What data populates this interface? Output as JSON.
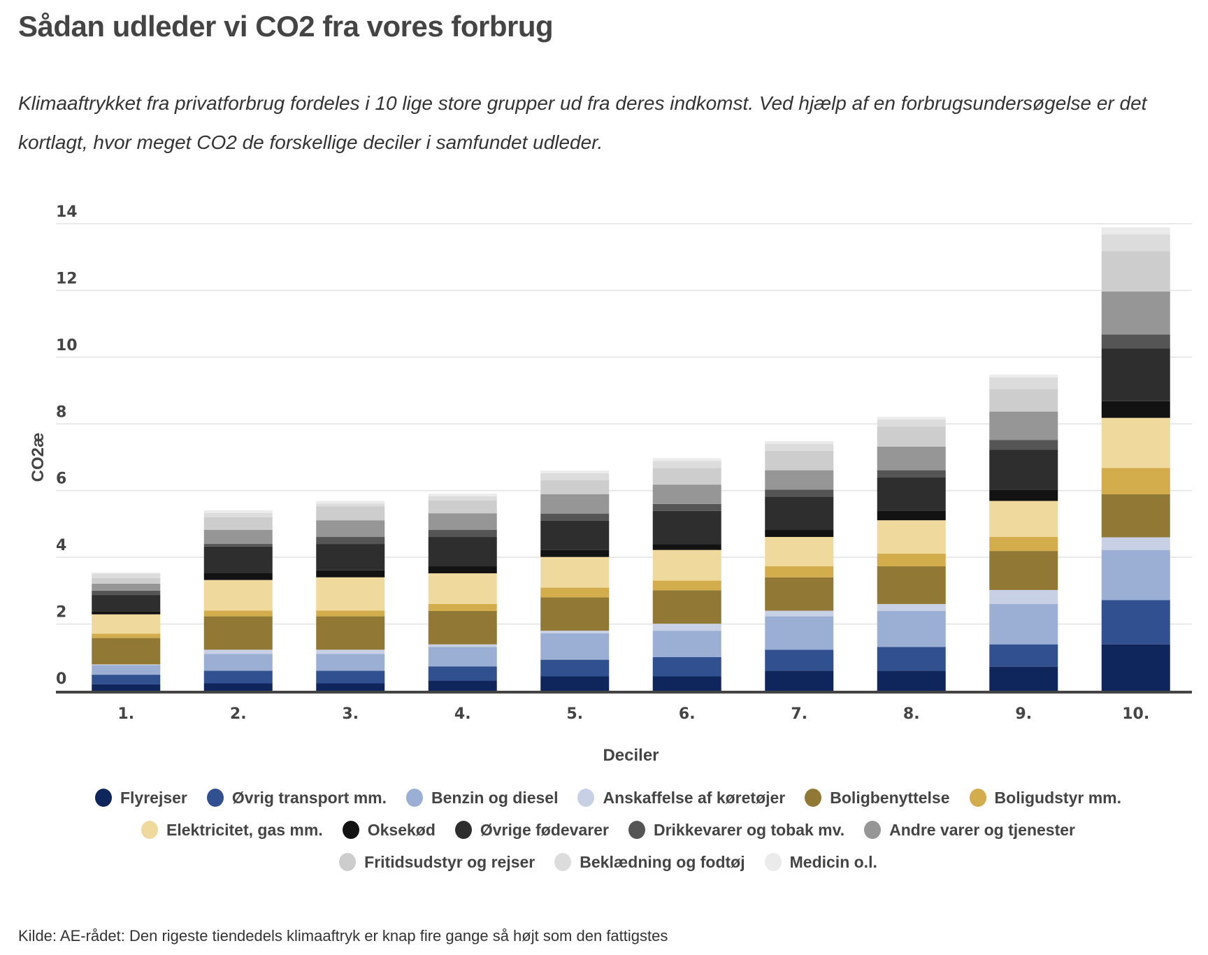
{
  "header": {
    "title": "Sådan udleder vi CO2 fra vores forbrug",
    "subtitle": "Klimaaftrykket fra privatforbrug fordeles i 10 lige store grupper ud fra deres indkomst. Ved hjælp af en forbrugsundersøgelse er det kortlagt, hvor meget CO2 de forskellige deciler i samfundet udleder."
  },
  "source": "Kilde: AE-rådet: Den rigeste tiendedels klimaaftryk er knap fire gange så højt som den fattigstes",
  "chart_data": {
    "type": "bar",
    "stacked": true,
    "title": "Sådan udleder vi CO2 fra vores forbrug",
    "xlabel": "Deciler",
    "ylabel": "CO2æ",
    "ylim": [
      0,
      14
    ],
    "yticks": [
      0,
      2,
      4,
      6,
      8,
      10,
      12,
      14
    ],
    "grid": true,
    "legend_position": "bottom",
    "categories": [
      "1.",
      "2.",
      "3.",
      "4.",
      "5.",
      "6.",
      "7.",
      "8.",
      "9.",
      "10."
    ],
    "series": [
      {
        "name": "Flyrejser",
        "color": "#0f265c",
        "values": [
          0.19,
          0.22,
          0.22,
          0.31,
          0.43,
          0.43,
          0.6,
          0.6,
          0.72,
          1.39
        ]
      },
      {
        "name": "Øvrig transport mm.",
        "color": "#30508f",
        "values": [
          0.29,
          0.38,
          0.38,
          0.42,
          0.5,
          0.58,
          0.63,
          0.71,
          0.67,
          1.33
        ]
      },
      {
        "name": "Benzin og diesel",
        "color": "#9aafd3",
        "values": [
          0.29,
          0.5,
          0.5,
          0.58,
          0.79,
          0.79,
          1.0,
          1.08,
          1.21,
          1.5
        ]
      },
      {
        "name": "Anskaffelse af køretøjer",
        "color": "#c7d0e4",
        "values": [
          0.02,
          0.13,
          0.13,
          0.08,
          0.08,
          0.21,
          0.17,
          0.21,
          0.42,
          0.38
        ]
      },
      {
        "name": "Boligbenyttelse",
        "color": "#917834",
        "values": [
          0.79,
          1.0,
          1.0,
          1.0,
          1.0,
          1.0,
          1.0,
          1.13,
          1.17,
          1.29
        ]
      },
      {
        "name": "Boligudstyr mm.",
        "color": "#d3ac4c",
        "values": [
          0.13,
          0.17,
          0.17,
          0.21,
          0.29,
          0.29,
          0.33,
          0.38,
          0.42,
          0.79
        ]
      },
      {
        "name": "Elektricitet, gas mm.",
        "color": "#f0d99d",
        "values": [
          0.58,
          0.92,
          1.0,
          0.92,
          0.92,
          0.92,
          0.88,
          1.0,
          1.08,
          1.5
        ]
      },
      {
        "name": "Oksekød",
        "color": "#121212",
        "values": [
          0.08,
          0.21,
          0.21,
          0.21,
          0.21,
          0.17,
          0.21,
          0.29,
          0.34,
          0.5
        ]
      },
      {
        "name": "Øvrige fødevarer",
        "color": "#2e2e2e",
        "values": [
          0.5,
          0.79,
          0.79,
          0.88,
          0.88,
          1.0,
          1.0,
          1.0,
          1.19,
          1.58
        ]
      },
      {
        "name": "Drikkevarer og tobak mv.",
        "color": "#555555",
        "values": [
          0.13,
          0.08,
          0.21,
          0.21,
          0.21,
          0.21,
          0.21,
          0.21,
          0.3,
          0.42
        ]
      },
      {
        "name": "Andre varer og tjenester",
        "color": "#969696",
        "values": [
          0.21,
          0.42,
          0.5,
          0.5,
          0.58,
          0.58,
          0.58,
          0.71,
          0.85,
          1.29
        ]
      },
      {
        "name": "Fritidsudstyr og rejser",
        "color": "#cdcdcd",
        "values": [
          0.17,
          0.38,
          0.42,
          0.38,
          0.42,
          0.5,
          0.58,
          0.6,
          0.68,
          1.21
        ]
      },
      {
        "name": "Beklædning og fodtøj",
        "color": "#dcdcdc",
        "values": [
          0.13,
          0.13,
          0.08,
          0.13,
          0.21,
          0.21,
          0.21,
          0.21,
          0.34,
          0.5
        ]
      },
      {
        "name": "Medicin o.l.",
        "color": "#ebebeb",
        "values": [
          0.03,
          0.08,
          0.08,
          0.08,
          0.08,
          0.08,
          0.08,
          0.08,
          0.09,
          0.21
        ]
      }
    ]
  }
}
